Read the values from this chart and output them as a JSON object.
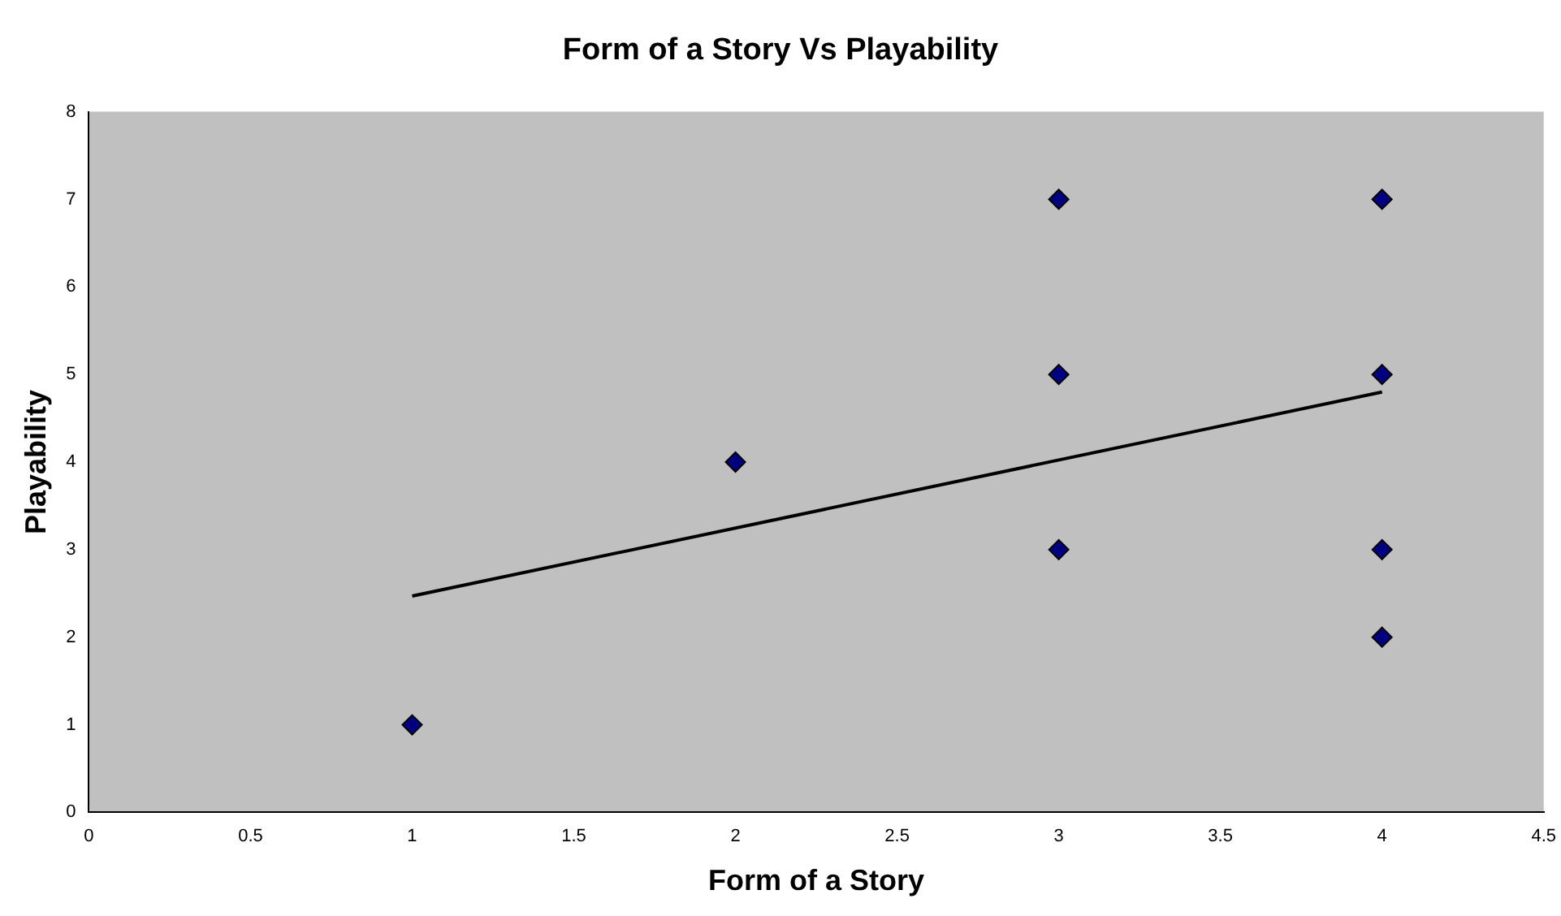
{
  "chart_data": {
    "type": "scatter",
    "title": "Form of a Story Vs Playability",
    "xlabel": "Form of a Story",
    "ylabel": "Playability",
    "xlim": [
      0,
      4.5
    ],
    "xticks": [
      0,
      0.5,
      1,
      1.5,
      2,
      2.5,
      3,
      3.5,
      4,
      4.5
    ],
    "ylim": [
      0,
      8
    ],
    "yticks": [
      0,
      1,
      2,
      3,
      4,
      5,
      6,
      7,
      8
    ],
    "marker": "diamond",
    "series": [
      {
        "color": "#000080",
        "x": [
          1,
          2,
          3,
          3,
          3,
          4,
          4,
          4,
          4
        ],
        "values": [
          1,
          4,
          7,
          5,
          3,
          7,
          5,
          3,
          2
        ]
      },
      {
        "type": "line",
        "color": "#000000",
        "marker": "none",
        "x": [
          1,
          4
        ],
        "values": [
          2.47,
          4.8
        ]
      }
    ]
  }
}
